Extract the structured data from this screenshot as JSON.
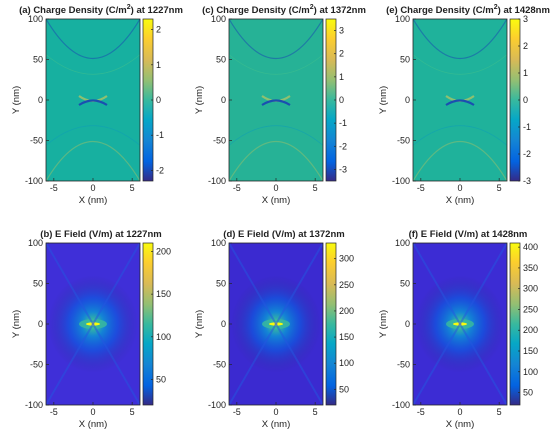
{
  "figure": {
    "colormap": "parula",
    "panels": [
      {
        "id": "a",
        "title_prefix": "(a) Charge Density (C/m",
        "title_sup": "2",
        "title_suffix": ") at 1227nm",
        "xlabel": "X (nm)",
        "ylabel": "Y (nm)",
        "xlim": [
          -6,
          6
        ],
        "ylim": [
          -100,
          100
        ],
        "xticks": [
          -5,
          0,
          5
        ],
        "yticks": [
          -100,
          -50,
          0,
          50,
          100
        ],
        "cbar_range": [
          -2.3,
          2.3
        ],
        "cbar_ticks": [
          -2,
          -1,
          0,
          1,
          2
        ],
        "field": "charge",
        "background": "#17b0a0"
      },
      {
        "id": "c",
        "title_prefix": "(c) Charge Density (C/m",
        "title_sup": "2",
        "title_suffix": ") at 1372nm",
        "xlabel": "X (nm)",
        "ylabel": "Y (nm)",
        "xlim": [
          -6,
          6
        ],
        "ylim": [
          -100,
          100
        ],
        "xticks": [
          -5,
          0,
          5
        ],
        "yticks": [
          -100,
          -50,
          0,
          50,
          100
        ],
        "cbar_range": [
          -3.5,
          3.5
        ],
        "cbar_ticks": [
          -3,
          -2,
          -1,
          0,
          1,
          2,
          3
        ],
        "field": "charge",
        "background": "#26b296"
      },
      {
        "id": "e",
        "title_prefix": "(e) Charge Density (C/m",
        "title_sup": "2",
        "title_suffix": ") at 1428nm",
        "xlabel": "X (nm)",
        "ylabel": "Y (nm)",
        "xlim": [
          -6,
          6
        ],
        "ylim": [
          -100,
          100
        ],
        "xticks": [
          -5,
          0,
          5
        ],
        "yticks": [
          -100,
          -50,
          0,
          50,
          100
        ],
        "cbar_range": [
          -3,
          3
        ],
        "cbar_ticks": [
          -3,
          -2,
          -1,
          0,
          1,
          2,
          3
        ],
        "field": "charge",
        "background": "#1fb29b"
      },
      {
        "id": "b",
        "title_prefix": "(b) E Field (V/m) at 1227nm",
        "title_sup": "",
        "title_suffix": "",
        "xlabel": "X (nm)",
        "ylabel": "Y (nm)",
        "xlim": [
          -6,
          6
        ],
        "ylim": [
          -100,
          100
        ],
        "xticks": [
          -5,
          0,
          5
        ],
        "yticks": [
          -100,
          -50,
          0,
          50,
          100
        ],
        "cbar_range": [
          20,
          210
        ],
        "cbar_ticks": [
          50,
          100,
          150,
          200
        ],
        "field": "efield",
        "background": "#3f2fd8"
      },
      {
        "id": "d",
        "title_prefix": "(d) E Field (V/m) at 1372nm",
        "title_sup": "",
        "title_suffix": "",
        "xlabel": "X (nm)",
        "ylabel": "Y (nm)",
        "xlim": [
          -6,
          6
        ],
        "ylim": [
          -100,
          100
        ],
        "xticks": [
          -5,
          0,
          5
        ],
        "yticks": [
          -100,
          -50,
          0,
          50,
          100
        ],
        "cbar_range": [
          20,
          330
        ],
        "cbar_ticks": [
          50,
          100,
          150,
          200,
          250,
          300
        ],
        "field": "efield",
        "background": "#3b2ad0"
      },
      {
        "id": "f",
        "title_prefix": "(f) E Field (V/m) at 1428nm",
        "title_sup": "",
        "title_suffix": "",
        "xlabel": "X (nm)",
        "ylabel": "Y (nm)",
        "xlim": [
          -6,
          6
        ],
        "ylim": [
          -100,
          100
        ],
        "xticks": [
          -5,
          0,
          5
        ],
        "yticks": [
          -100,
          -50,
          0,
          50,
          100
        ],
        "cbar_range": [
          20,
          410
        ],
        "cbar_ticks": [
          50,
          100,
          150,
          200,
          250,
          300,
          350,
          400
        ],
        "field": "efield",
        "background": "#3c2cd4"
      }
    ]
  },
  "chart_data": [
    {
      "type": "heatmap",
      "title": "(a) Charge Density (C/m2) at 1227nm",
      "xlabel": "X (nm)",
      "ylabel": "Y (nm)",
      "xlim": [
        -6,
        6
      ],
      "ylim": [
        -100,
        100
      ],
      "colorbar_range": [
        -2.3,
        2.3
      ],
      "colorbar_ticks": [
        -2,
        -1,
        0,
        1,
        2
      ]
    },
    {
      "type": "heatmap",
      "title": "(c) Charge Density (C/m2) at 1372nm",
      "xlabel": "X (nm)",
      "ylabel": "Y (nm)",
      "xlim": [
        -6,
        6
      ],
      "ylim": [
        -100,
        100
      ],
      "colorbar_range": [
        -3.5,
        3.5
      ],
      "colorbar_ticks": [
        -3,
        -2,
        -1,
        0,
        1,
        2,
        3
      ]
    },
    {
      "type": "heatmap",
      "title": "(e) Charge Density (C/m2) at 1428nm",
      "xlabel": "X (nm)",
      "ylabel": "Y (nm)",
      "xlim": [
        -6,
        6
      ],
      "ylim": [
        -100,
        100
      ],
      "colorbar_range": [
        -3,
        3
      ],
      "colorbar_ticks": [
        -3,
        -2,
        -1,
        0,
        1,
        2,
        3
      ]
    },
    {
      "type": "heatmap",
      "title": "(b) E Field (V/m) at 1227nm",
      "xlabel": "X (nm)",
      "ylabel": "Y (nm)",
      "xlim": [
        -6,
        6
      ],
      "ylim": [
        -100,
        100
      ],
      "colorbar_range": [
        20,
        210
      ],
      "colorbar_ticks": [
        50,
        100,
        150,
        200
      ]
    },
    {
      "type": "heatmap",
      "title": "(d) E Field (V/m) at 1372nm",
      "xlabel": "X (nm)",
      "ylabel": "Y (nm)",
      "xlim": [
        -6,
        6
      ],
      "ylim": [
        -100,
        100
      ],
      "colorbar_range": [
        20,
        330
      ],
      "colorbar_ticks": [
        50,
        100,
        150,
        200,
        250,
        300
      ]
    },
    {
      "type": "heatmap",
      "title": "(f) E Field (V/m) at 1428nm",
      "xlabel": "X (nm)",
      "ylabel": "Y (nm)",
      "xlim": [
        -6,
        6
      ],
      "ylim": [
        -100,
        100
      ],
      "colorbar_range": [
        20,
        410
      ],
      "colorbar_ticks": [
        50,
        100,
        150,
        200,
        250,
        300,
        350,
        400
      ]
    }
  ]
}
